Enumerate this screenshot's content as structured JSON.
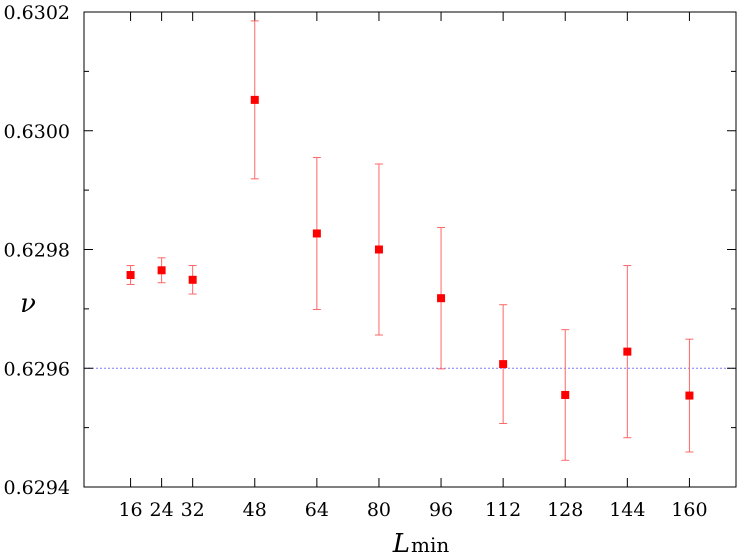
{
  "chart_data": {
    "type": "scatter",
    "title": "",
    "xlabel": "L",
    "xlabel_subscript": "min",
    "ylabel": "ν",
    "xlim": [
      4,
      172
    ],
    "ylim": [
      0.6294,
      0.6302
    ],
    "x_ticks": [
      16,
      24,
      32,
      48,
      64,
      80,
      96,
      112,
      128,
      144,
      160
    ],
    "y_ticks": [
      0.6294,
      0.6296,
      0.6298,
      0.63,
      0.6302
    ],
    "y_tick_labels": [
      "0.6294",
      "0.6296",
      "0.6298",
      "0.6300",
      "0.6302"
    ],
    "y_minor_ticks": [
      0.6295,
      0.6297,
      0.6299,
      0.6301
    ],
    "reference_line": {
      "y": 0.6296,
      "color": "#7f7fff",
      "style": "dotted"
    },
    "series": [
      {
        "marker": "square",
        "color": "#ff0000",
        "errorbar_color": "#ff6666",
        "points": [
          {
            "x": 16,
            "y": 0.629757,
            "err": 1.6e-05
          },
          {
            "x": 24,
            "y": 0.629765,
            "err": 2.1e-05
          },
          {
            "x": 32,
            "y": 0.629749,
            "err": 2.4e-05
          },
          {
            "x": 48,
            "y": 0.630052,
            "err": 0.000133
          },
          {
            "x": 64,
            "y": 0.629827,
            "err": 0.000128
          },
          {
            "x": 80,
            "y": 0.6298,
            "err": 0.000144
          },
          {
            "x": 96,
            "y": 0.629718,
            "err": 0.000119
          },
          {
            "x": 112,
            "y": 0.629607,
            "err": 0.0001
          },
          {
            "x": 128,
            "y": 0.629555,
            "err": 0.00011
          },
          {
            "x": 144,
            "y": 0.629628,
            "err": 0.000145
          },
          {
            "x": 160,
            "y": 0.629554,
            "err": 9.5e-05
          }
        ]
      }
    ],
    "grid": false
  }
}
